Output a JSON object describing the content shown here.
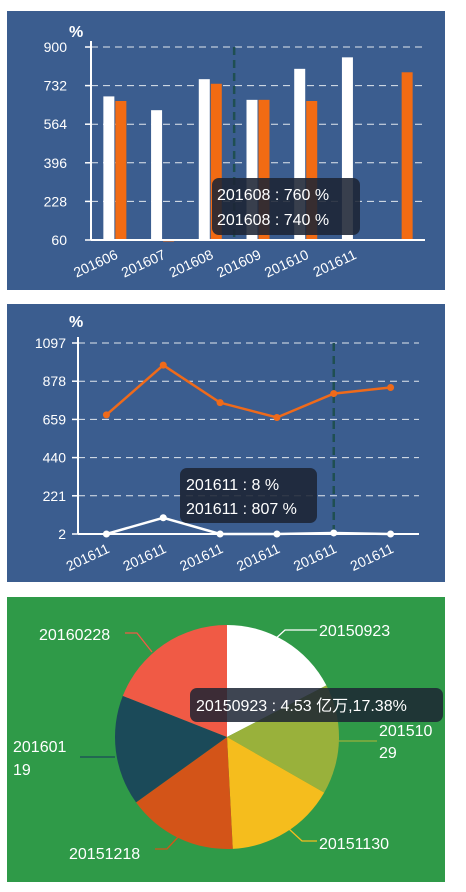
{
  "chart_data": [
    {
      "type": "bar",
      "ylabel": "%",
      "ylim": [
        60,
        900
      ],
      "y_ticks": [
        "900",
        "732",
        "564",
        "396",
        "228",
        "60"
      ],
      "categories": [
        "201606",
        "201607",
        "201608",
        "201609",
        "201610",
        "201611",
        ""
      ],
      "x_tick_labels": [
        "201606",
        "201607",
        "201608",
        "201609",
        "201610",
        "201611"
      ],
      "series": [
        {
          "color": "#ffffff",
          "values": [
            685,
            625,
            760,
            670,
            805,
            855,
            null
          ]
        },
        {
          "color": "#f26b13",
          "values": [
            665,
            60,
            740,
            670,
            665,
            null,
            790
          ]
        }
      ],
      "grid": true,
      "highlight_index": 2,
      "tooltip": [
        "201608 : 760 %",
        "201608 : 740 %"
      ]
    },
    {
      "type": "line",
      "ylabel": "%",
      "ylim": [
        2,
        1097
      ],
      "y_ticks": [
        "1097",
        "878",
        "659",
        "440",
        "221",
        "2"
      ],
      "categories": [
        "201611",
        "201611",
        "201611",
        "201611",
        "201611",
        "201611"
      ],
      "series": [
        {
          "color": "#ef6a1a",
          "values": [
            685,
            970,
            755,
            670,
            807,
            842
          ]
        },
        {
          "color": "#ffffff",
          "values": [
            2,
            95,
            2,
            2,
            8,
            2
          ]
        }
      ],
      "grid": true,
      "highlight_index": 4,
      "tooltip": [
        "201611 : 8 %",
        "201611 : 807 %"
      ]
    },
    {
      "type": "pie",
      "slices": [
        {
          "label": "20150923",
          "value": 17.38,
          "color": "#ffffff"
        },
        {
          "label": "20151029",
          "value": 15.9,
          "color": "#99b13b"
        },
        {
          "label": "20151130",
          "value": 15.9,
          "color": "#f5bd1d"
        },
        {
          "label": "20151218",
          "value": 15.9,
          "color": "#d35418"
        },
        {
          "label": "20160119",
          "value": 15.9,
          "color": "#1b4a59"
        },
        {
          "label": "20160228",
          "value": 19.02,
          "color": "#f05a45"
        }
      ],
      "tooltip": "20150923 : 4.53 亿万,17.38%"
    }
  ],
  "pie_labels": {
    "l0": "20150923",
    "l1a": "201510",
    "l1b": "29",
    "l2": "20151130",
    "l3": "20151218",
    "l4a": "201601",
    "l4b": "19",
    "l5": "20160228"
  }
}
